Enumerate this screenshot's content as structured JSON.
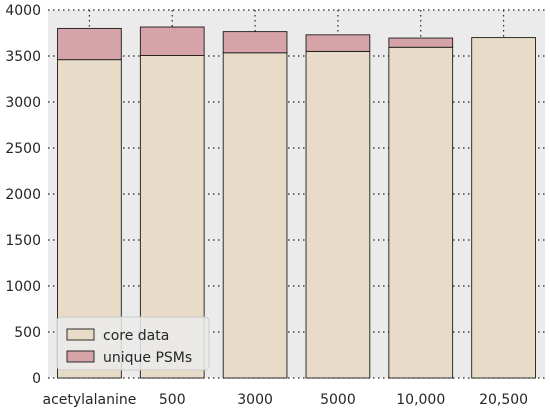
{
  "chart_data": {
    "type": "bar",
    "stacked": true,
    "title": "",
    "xlabel": "",
    "ylabel": "",
    "categories": [
      "acetylalanine",
      "500",
      "3000",
      "5000",
      "10,000",
      "20,500"
    ],
    "series": [
      {
        "name": "core data",
        "color": "#e8dcc8",
        "values": [
          3460,
          3505,
          3535,
          3550,
          3595,
          3700
        ]
      },
      {
        "name": "unique PSMs",
        "color": "#d6a4a8",
        "values": [
          340,
          310,
          230,
          180,
          100,
          0
        ]
      }
    ],
    "ylim": [
      0,
      4000
    ],
    "yticks": [
      0,
      500,
      1000,
      1500,
      2000,
      2500,
      3000,
      3500,
      4000
    ],
    "grid": true,
    "grid_style": "dotted",
    "background_color": "#ebebeb",
    "legend_position": "lower-left"
  }
}
